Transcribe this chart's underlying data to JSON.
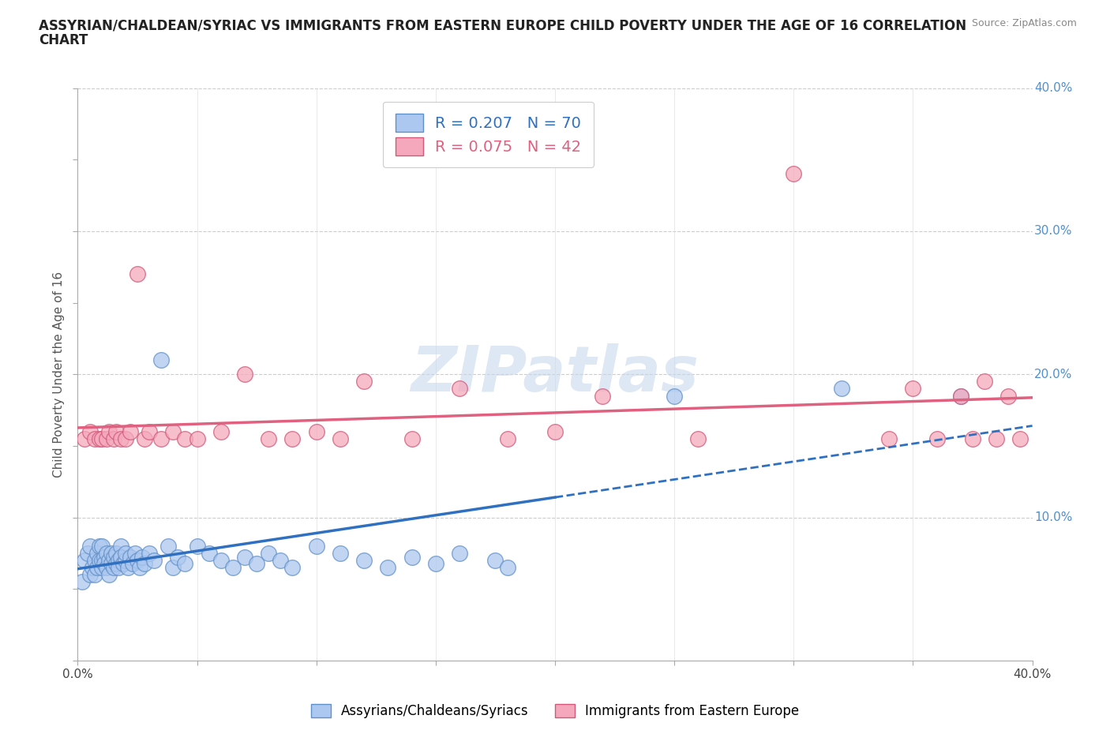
{
  "title": "ASSYRIAN/CHALDEAN/SYRIAC VS IMMIGRANTS FROM EASTERN EUROPE CHILD POVERTY UNDER THE AGE OF 16 CORRELATION\nCHART",
  "source": "Source: ZipAtlas.com",
  "xlabel": "",
  "ylabel": "Child Poverty Under the Age of 16",
  "xlim": [
    0.0,
    0.4
  ],
  "ylim": [
    0.0,
    0.4
  ],
  "group1_color": "#adc8f0",
  "group2_color": "#f5a8bc",
  "group1_edge_color": "#6090c8",
  "group2_edge_color": "#d05878",
  "group1_R": 0.207,
  "group1_N": 70,
  "group2_R": 0.075,
  "group2_N": 42,
  "group1_label": "Assyrians/Chaldeans/Syriacs",
  "group2_label": "Immigrants from Eastern Europe",
  "trend1_color": "#3070c0",
  "trend2_color": "#e06080",
  "watermark": "ZIPatlas",
  "watermark_color": "#c8d8ee",
  "background_color": "#ffffff",
  "ytick_color": "#5090d0",
  "group1_x": [
    0.002,
    0.003,
    0.004,
    0.005,
    0.005,
    0.006,
    0.007,
    0.007,
    0.008,
    0.008,
    0.009,
    0.009,
    0.01,
    0.01,
    0.01,
    0.011,
    0.011,
    0.012,
    0.012,
    0.013,
    0.013,
    0.014,
    0.014,
    0.015,
    0.015,
    0.016,
    0.016,
    0.017,
    0.017,
    0.018,
    0.018,
    0.019,
    0.02,
    0.02,
    0.021,
    0.022,
    0.023,
    0.024,
    0.025,
    0.026,
    0.027,
    0.028,
    0.03,
    0.032,
    0.035,
    0.038,
    0.04,
    0.042,
    0.045,
    0.05,
    0.055,
    0.06,
    0.065,
    0.07,
    0.075,
    0.08,
    0.085,
    0.09,
    0.1,
    0.11,
    0.12,
    0.13,
    0.14,
    0.15,
    0.16,
    0.175,
    0.18,
    0.25,
    0.32,
    0.37
  ],
  "group1_y": [
    0.055,
    0.07,
    0.075,
    0.06,
    0.08,
    0.065,
    0.07,
    0.06,
    0.075,
    0.065,
    0.07,
    0.08,
    0.065,
    0.07,
    0.08,
    0.072,
    0.068,
    0.075,
    0.065,
    0.07,
    0.06,
    0.075,
    0.068,
    0.065,
    0.072,
    0.068,
    0.075,
    0.07,
    0.065,
    0.08,
    0.072,
    0.068,
    0.07,
    0.075,
    0.065,
    0.072,
    0.068,
    0.075,
    0.07,
    0.065,
    0.072,
    0.068,
    0.075,
    0.07,
    0.21,
    0.08,
    0.065,
    0.072,
    0.068,
    0.08,
    0.075,
    0.07,
    0.065,
    0.072,
    0.068,
    0.075,
    0.07,
    0.065,
    0.08,
    0.075,
    0.07,
    0.065,
    0.072,
    0.068,
    0.075,
    0.07,
    0.065,
    0.185,
    0.19,
    0.185
  ],
  "group2_x": [
    0.003,
    0.005,
    0.007,
    0.009,
    0.01,
    0.012,
    0.013,
    0.015,
    0.016,
    0.018,
    0.02,
    0.022,
    0.025,
    0.028,
    0.03,
    0.035,
    0.04,
    0.045,
    0.05,
    0.06,
    0.07,
    0.08,
    0.09,
    0.1,
    0.11,
    0.12,
    0.14,
    0.16,
    0.18,
    0.2,
    0.22,
    0.26,
    0.3,
    0.34,
    0.35,
    0.36,
    0.37,
    0.375,
    0.38,
    0.385,
    0.39,
    0.395
  ],
  "group2_y": [
    0.155,
    0.16,
    0.155,
    0.155,
    0.155,
    0.155,
    0.16,
    0.155,
    0.16,
    0.155,
    0.155,
    0.16,
    0.27,
    0.155,
    0.16,
    0.155,
    0.16,
    0.155,
    0.155,
    0.16,
    0.2,
    0.155,
    0.155,
    0.16,
    0.155,
    0.195,
    0.155,
    0.19,
    0.155,
    0.16,
    0.185,
    0.155,
    0.34,
    0.155,
    0.19,
    0.155,
    0.185,
    0.155,
    0.195,
    0.155,
    0.185,
    0.155
  ]
}
